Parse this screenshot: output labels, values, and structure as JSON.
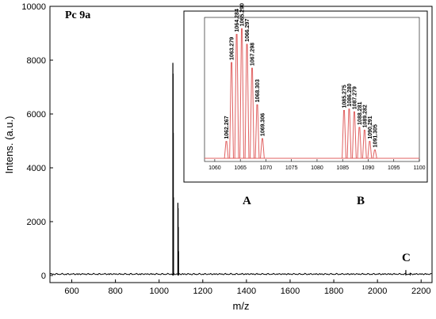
{
  "chart_data": [
    {
      "type": "line",
      "title": "Pc 9a",
      "xlabel": "m/z",
      "ylabel": "Intens. (a.u.)",
      "xlim": [
        500,
        2250
      ],
      "ylim": [
        0,
        10000
      ],
      "x_ticks": [
        "600",
        "800",
        "1000",
        "1200",
        "1400",
        "1600",
        "1800",
        "2000",
        "2200"
      ],
      "y_ticks": [
        "0",
        "2000",
        "4000",
        "6000",
        "8000",
        "10000"
      ],
      "grid": false,
      "series": [
        {
          "color": "#000000",
          "peaks": [
            {
              "x": 1063,
              "y": 7900
            },
            {
              "x": 1064,
              "y": 7500
            },
            {
              "x": 1065,
              "y": 5300
            },
            {
              "x": 1066,
              "y": 2900
            },
            {
              "x": 1086,
              "y": 2700
            },
            {
              "x": 1087,
              "y": 2500
            },
            {
              "x": 1088,
              "y": 1800
            },
            {
              "x": 1089,
              "y": 900
            },
            {
              "x": 2130,
              "y": 200
            },
            {
              "x": 2150,
              "y": 100
            }
          ]
        }
      ],
      "annotations": [
        "A",
        "B",
        "C"
      ]
    },
    {
      "type": "bar",
      "xlim": [
        1058,
        1100
      ],
      "ylim": [
        0,
        100
      ],
      "x_ticks": [
        "1060",
        "1065",
        "1070",
        "1075",
        "1080",
        "1085",
        "1090",
        "1095",
        "1100"
      ],
      "series": [
        {
          "color": "#e06060",
          "peaks": [
            {
              "x": 1062.267,
              "y": 12,
              "label": "1062.267"
            },
            {
              "x": 1063.279,
              "y": 68,
              "label": "1063.279"
            },
            {
              "x": 1064.284,
              "y": 88,
              "label": "1064.284"
            },
            {
              "x": 1065.29,
              "y": 92,
              "label": "1065.290"
            },
            {
              "x": 1066.297,
              "y": 81,
              "label": "1066.297"
            },
            {
              "x": 1067.298,
              "y": 64,
              "label": "1067.298"
            },
            {
              "x": 1068.303,
              "y": 38,
              "label": "1068.303"
            },
            {
              "x": 1069.306,
              "y": 14,
              "label": "1069.306"
            },
            {
              "x": 1085.275,
              "y": 34,
              "label": "1085.275"
            },
            {
              "x": 1086.28,
              "y": 35,
              "label": "1086.280"
            },
            {
              "x": 1087.279,
              "y": 33,
              "label": "1087.279"
            },
            {
              "x": 1088.281,
              "y": 22,
              "label": "1088.281"
            },
            {
              "x": 1089.282,
              "y": 20,
              "label": "1089.282"
            },
            {
              "x": 1090.291,
              "y": 12,
              "label": "1090.291"
            },
            {
              "x": 1091.305,
              "y": 6,
              "label": "1091.305"
            }
          ]
        }
      ]
    }
  ]
}
